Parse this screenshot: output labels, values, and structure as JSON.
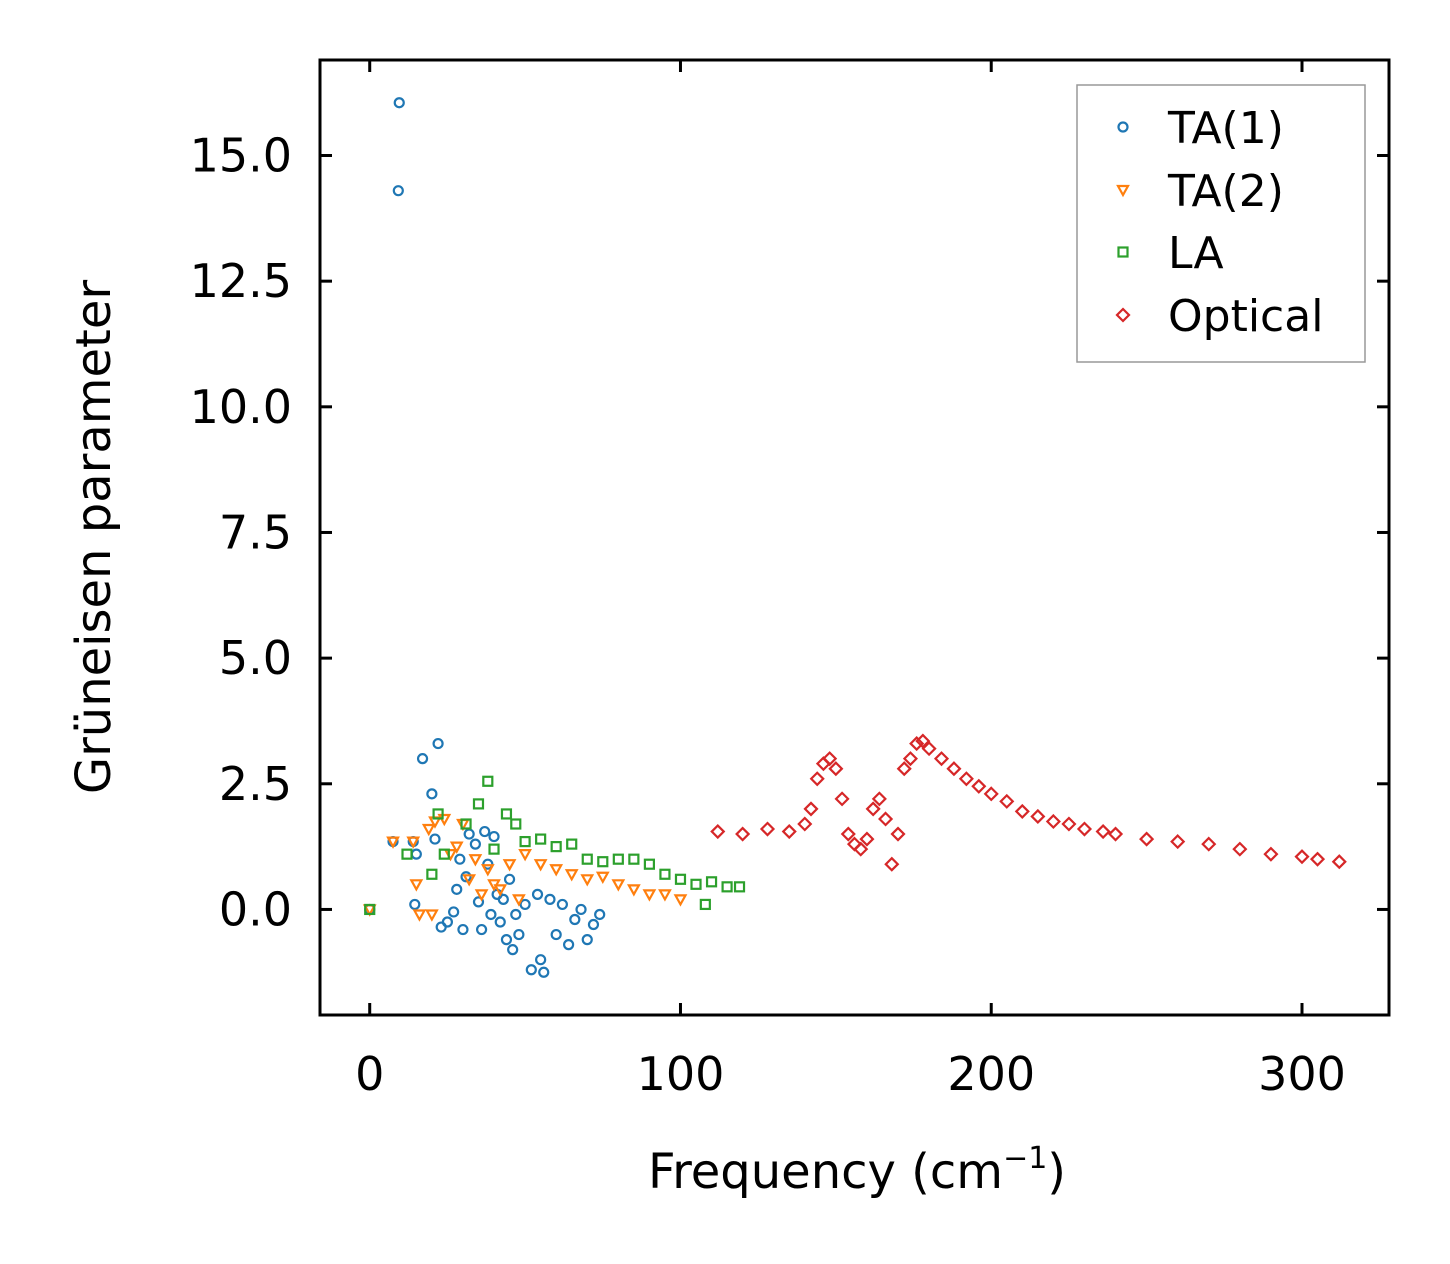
{
  "chart_data": {
    "type": "scatter",
    "title": "",
    "xlabel": "Frequency (cm",
    "xlabel_sup": "−1",
    "xlabel_end": ")",
    "ylabel": "Grüneisen parameter",
    "xlim": [
      -16,
      328
    ],
    "ylim": [
      -2.1,
      16.9
    ],
    "xticks": [
      0,
      100,
      200,
      300
    ],
    "xtick_labels": [
      "0",
      "100",
      "200",
      "300"
    ],
    "yticks": [
      0.0,
      2.5,
      5.0,
      7.5,
      10.0,
      12.5,
      15.0
    ],
    "ytick_labels": [
      "0.0",
      "2.5",
      "5.0",
      "7.5",
      "10.0",
      "12.5",
      "15.0"
    ],
    "legend_position": "top-right",
    "series": [
      {
        "name": "TA(1)",
        "marker": "circle",
        "color": "#1f77b4",
        "points": [
          [
            0,
            0.0
          ],
          [
            9.5,
            16.05
          ],
          [
            9.2,
            14.3
          ],
          [
            7.5,
            1.35
          ],
          [
            14,
            1.35
          ],
          [
            15,
            1.1
          ],
          [
            14.5,
            0.1
          ],
          [
            17,
            3.0
          ],
          [
            22,
            3.3
          ],
          [
            20,
            2.3
          ],
          [
            21,
            1.4
          ],
          [
            23,
            -0.35
          ],
          [
            25,
            -0.25
          ],
          [
            27,
            -0.05
          ],
          [
            28,
            0.4
          ],
          [
            29,
            1.0
          ],
          [
            30,
            -0.4
          ],
          [
            31,
            0.65
          ],
          [
            32,
            1.5
          ],
          [
            34,
            1.3
          ],
          [
            35,
            0.15
          ],
          [
            36,
            -0.4
          ],
          [
            37,
            1.55
          ],
          [
            38,
            0.9
          ],
          [
            39,
            -0.1
          ],
          [
            40,
            1.45
          ],
          [
            41,
            0.3
          ],
          [
            42,
            -0.25
          ],
          [
            43,
            0.2
          ],
          [
            44,
            -0.6
          ],
          [
            45,
            0.6
          ],
          [
            46,
            -0.8
          ],
          [
            47,
            -0.1
          ],
          [
            48,
            -0.5
          ],
          [
            50,
            0.1
          ],
          [
            52,
            -1.2
          ],
          [
            54,
            0.3
          ],
          [
            55,
            -1.0
          ],
          [
            56,
            -1.25
          ],
          [
            58,
            0.2
          ],
          [
            60,
            -0.5
          ],
          [
            62,
            0.1
          ],
          [
            64,
            -0.7
          ],
          [
            66,
            -0.2
          ],
          [
            68,
            0.0
          ],
          [
            70,
            -0.6
          ],
          [
            72,
            -0.3
          ],
          [
            74,
            -0.1
          ]
        ]
      },
      {
        "name": "TA(2)",
        "marker": "triangle-down",
        "color": "#ff7f0e",
        "points": [
          [
            0,
            0.0
          ],
          [
            7.5,
            1.35
          ],
          [
            14,
            1.35
          ],
          [
            15,
            0.5
          ],
          [
            16,
            -0.1
          ],
          [
            19,
            1.6
          ],
          [
            20,
            -0.1
          ],
          [
            21,
            1.75
          ],
          [
            24,
            1.8
          ],
          [
            26,
            1.1
          ],
          [
            28,
            1.25
          ],
          [
            30,
            1.7
          ],
          [
            32,
            0.6
          ],
          [
            34,
            1.0
          ],
          [
            36,
            0.3
          ],
          [
            38,
            0.8
          ],
          [
            40,
            0.5
          ],
          [
            42,
            0.4
          ],
          [
            45,
            0.9
          ],
          [
            48,
            0.2
          ],
          [
            50,
            1.1
          ],
          [
            55,
            0.9
          ],
          [
            60,
            0.8
          ],
          [
            65,
            0.7
          ],
          [
            70,
            0.6
          ],
          [
            75,
            0.65
          ],
          [
            80,
            0.5
          ],
          [
            85,
            0.4
          ],
          [
            90,
            0.3
          ],
          [
            95,
            0.3
          ],
          [
            100,
            0.2
          ]
        ]
      },
      {
        "name": "LA",
        "marker": "square",
        "color": "#2ca02c",
        "points": [
          [
            0,
            0.0
          ],
          [
            12,
            1.1
          ],
          [
            20,
            0.7
          ],
          [
            22,
            1.9
          ],
          [
            24,
            1.1
          ],
          [
            31,
            1.7
          ],
          [
            35,
            2.1
          ],
          [
            38,
            2.55
          ],
          [
            40,
            1.2
          ],
          [
            44,
            1.9
          ],
          [
            47,
            1.7
          ],
          [
            50,
            1.35
          ],
          [
            55,
            1.4
          ],
          [
            60,
            1.25
          ],
          [
            65,
            1.3
          ],
          [
            70,
            1.0
          ],
          [
            75,
            0.95
          ],
          [
            80,
            1.0
          ],
          [
            85,
            1.0
          ],
          [
            90,
            0.9
          ],
          [
            95,
            0.7
          ],
          [
            100,
            0.6
          ],
          [
            105,
            0.5
          ],
          [
            108,
            0.1
          ],
          [
            110,
            0.55
          ],
          [
            115,
            0.45
          ],
          [
            119,
            0.45
          ]
        ]
      },
      {
        "name": "Optical",
        "marker": "diamond",
        "color": "#d62728",
        "points": [
          [
            112,
            1.55
          ],
          [
            120,
            1.5
          ],
          [
            128,
            1.6
          ],
          [
            135,
            1.55
          ],
          [
            140,
            1.7
          ],
          [
            142,
            2.0
          ],
          [
            144,
            2.6
          ],
          [
            146,
            2.9
          ],
          [
            148,
            3.0
          ],
          [
            150,
            2.8
          ],
          [
            152,
            2.2
          ],
          [
            154,
            1.5
          ],
          [
            156,
            1.3
          ],
          [
            158,
            1.2
          ],
          [
            160,
            1.4
          ],
          [
            162,
            2.0
          ],
          [
            164,
            2.2
          ],
          [
            166,
            1.8
          ],
          [
            168,
            0.9
          ],
          [
            170,
            1.5
          ],
          [
            172,
            2.8
          ],
          [
            174,
            3.0
          ],
          [
            176,
            3.3
          ],
          [
            178,
            3.35
          ],
          [
            180,
            3.2
          ],
          [
            184,
            3.0
          ],
          [
            188,
            2.8
          ],
          [
            192,
            2.6
          ],
          [
            196,
            2.45
          ],
          [
            200,
            2.3
          ],
          [
            205,
            2.15
          ],
          [
            210,
            1.95
          ],
          [
            215,
            1.85
          ],
          [
            220,
            1.75
          ],
          [
            225,
            1.7
          ],
          [
            230,
            1.6
          ],
          [
            236,
            1.55
          ],
          [
            240,
            1.5
          ],
          [
            250,
            1.4
          ],
          [
            260,
            1.35
          ],
          [
            270,
            1.3
          ],
          [
            280,
            1.2
          ],
          [
            290,
            1.1
          ],
          [
            300,
            1.05
          ],
          [
            305,
            1.0
          ],
          [
            312,
            0.95
          ]
        ]
      }
    ]
  }
}
